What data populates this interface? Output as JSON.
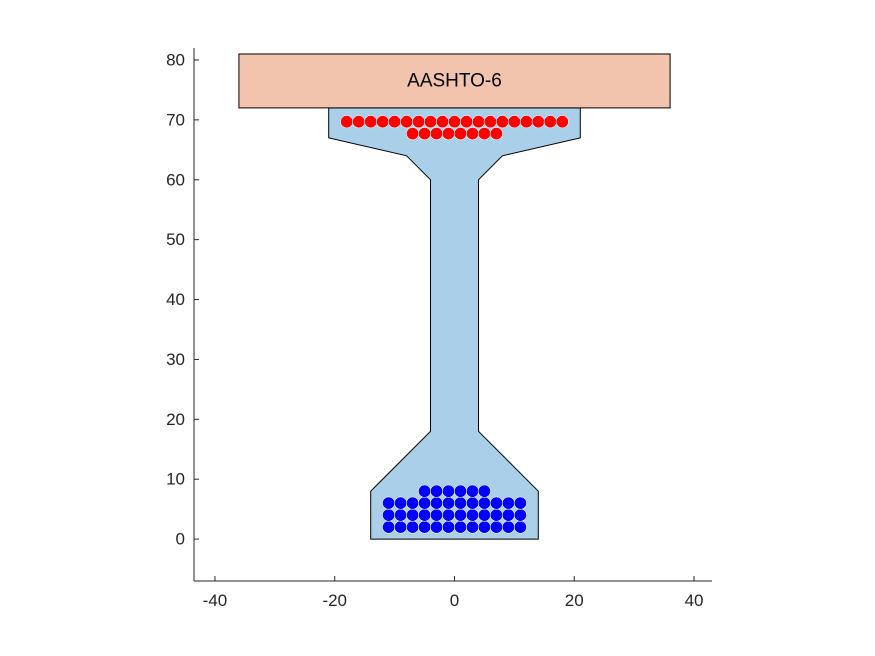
{
  "chart_data": {
    "type": "scatter",
    "title": "",
    "xlabel": "",
    "ylabel": "",
    "xlim": [
      -43.5,
      43
    ],
    "ylim": [
      -7,
      82
    ],
    "x_ticks": [
      -40,
      -20,
      0,
      20,
      40
    ],
    "y_ticks": [
      0,
      10,
      20,
      30,
      40,
      50,
      60,
      70,
      80
    ],
    "x_tick_labels": [
      "-40",
      "-20",
      "0",
      "20",
      "40"
    ],
    "y_tick_labels": [
      "0",
      "10",
      "20",
      "30",
      "40",
      "50",
      "60",
      "70",
      "80"
    ],
    "grid": false,
    "deck": {
      "label": "AASHTO-6",
      "x_range": [
        -36,
        36
      ],
      "y_range": [
        72,
        81
      ],
      "color": "#f2c4ae"
    },
    "girder_section": {
      "color": "#a9cfe9",
      "outline": [
        [
          -14,
          0
        ],
        [
          14,
          0
        ],
        [
          14,
          8
        ],
        [
          4,
          18
        ],
        [
          4,
          60
        ],
        [
          8,
          64
        ],
        [
          21,
          67
        ],
        [
          21,
          72
        ],
        [
          -21,
          72
        ],
        [
          -21,
          67
        ],
        [
          -8,
          64
        ],
        [
          -4,
          60
        ],
        [
          -4,
          18
        ],
        [
          -14,
          8
        ]
      ]
    },
    "top_strands": {
      "color": "#ff0000",
      "rows": [
        {
          "y": 69.7,
          "x": [
            -18,
            -16,
            -14,
            -12,
            -10,
            -8,
            -6,
            -4,
            -2,
            0,
            2,
            4,
            6,
            8,
            10,
            12,
            14,
            16,
            18
          ]
        },
        {
          "y": 67.7,
          "x": [
            -7,
            -5,
            -3,
            -1,
            1,
            3,
            5,
            7
          ]
        }
      ]
    },
    "bottom_strands": {
      "color": "#0000ff",
      "rows": [
        {
          "y": 2,
          "x": [
            -11,
            -9,
            -7,
            -5,
            -3,
            -1,
            1,
            3,
            5,
            7,
            9,
            11
          ]
        },
        {
          "y": 4,
          "x": [
            -11,
            -9,
            -7,
            -5,
            -3,
            -1,
            1,
            3,
            5,
            7,
            9,
            11
          ]
        },
        {
          "y": 6,
          "x": [
            -11,
            -9,
            -7,
            -5,
            -3,
            -1,
            1,
            3,
            5,
            7,
            9,
            11
          ]
        },
        {
          "y": 8,
          "x": [
            -5,
            -3,
            -1,
            1,
            3,
            5
          ]
        }
      ]
    }
  }
}
